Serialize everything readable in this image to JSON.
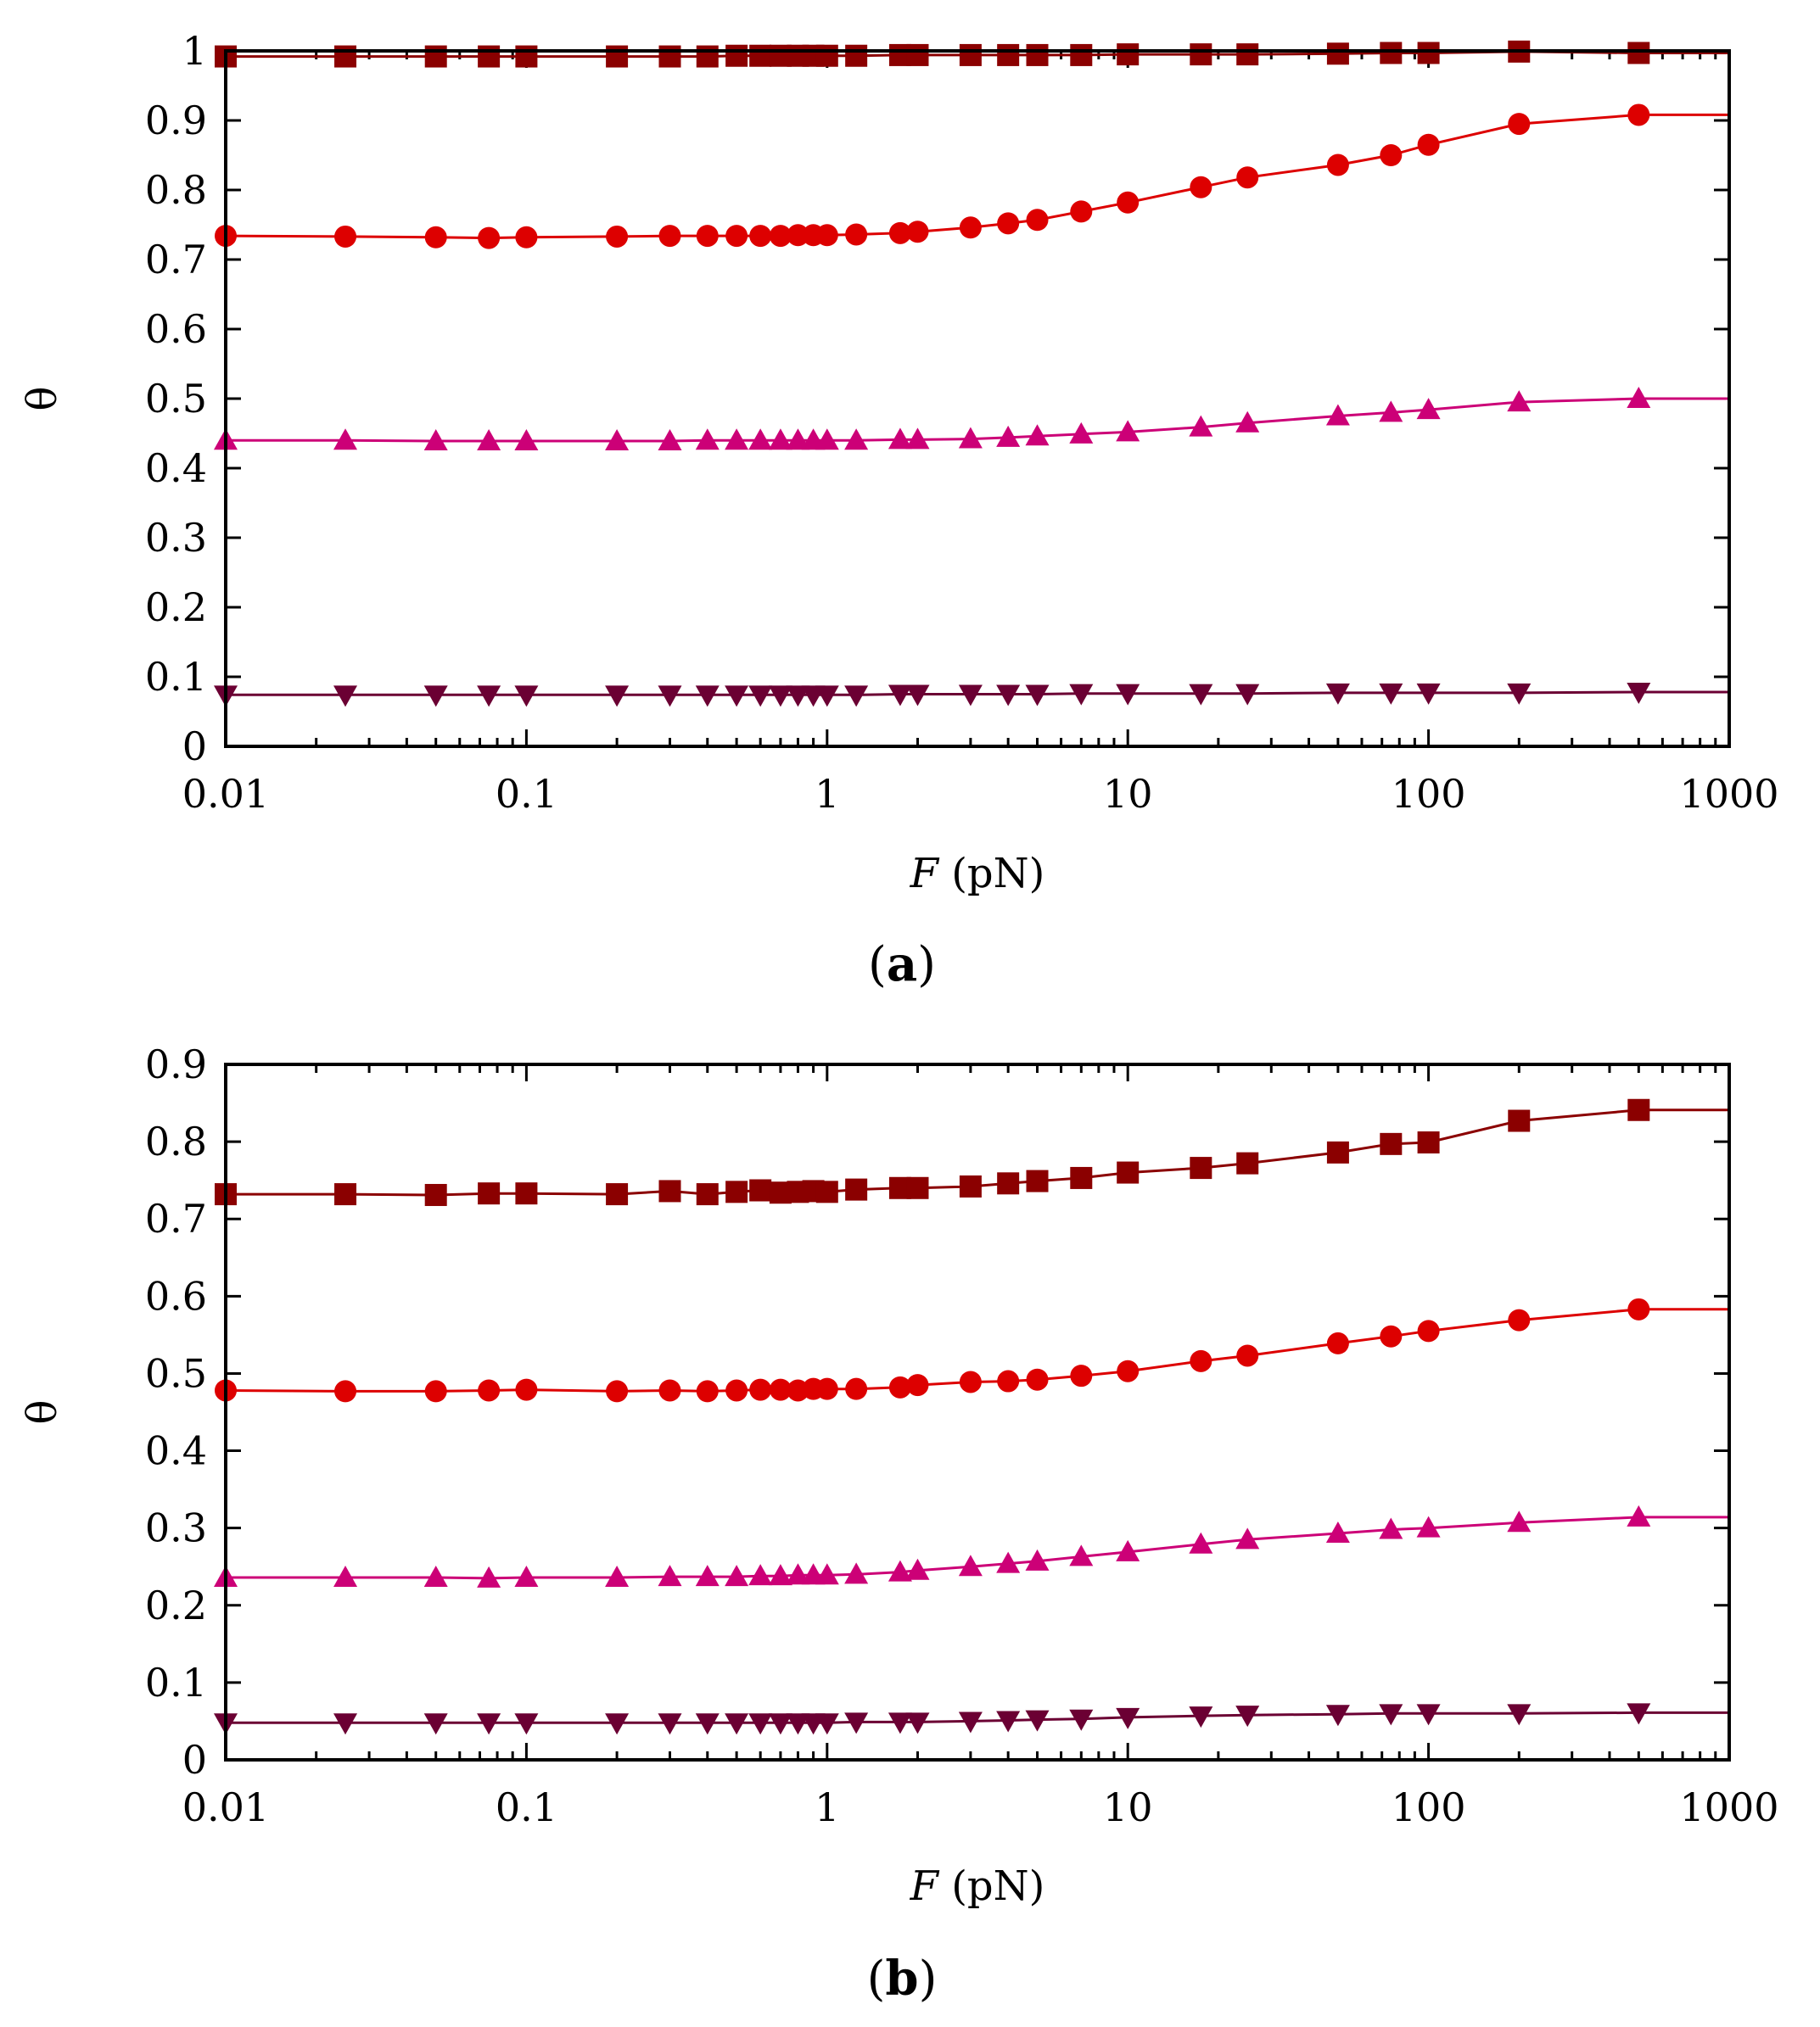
{
  "chart_data": [
    {
      "type": "line",
      "panel_label_open": "(",
      "panel_label_letter": "a",
      "panel_label_close": ")",
      "xlabel_var": "F",
      "xlabel_unit": " (pN)",
      "ylabel": "θ",
      "xscale": "log",
      "xlim": [
        0.01,
        1000
      ],
      "ylim": [
        0,
        1
      ],
      "xticks": [
        0.01,
        0.1,
        1,
        10,
        100,
        1000
      ],
      "xtick_labels": [
        "0.01",
        "0.1",
        "1",
        "10",
        "100",
        "1000"
      ],
      "yticks": [
        0,
        0.1,
        0.2,
        0.3,
        0.4,
        0.5,
        0.6,
        0.7,
        0.8,
        0.9,
        1
      ],
      "ytick_labels": [
        "0",
        "0.1",
        "0.2",
        "0.3",
        "0.4",
        "0.5",
        "0.6",
        "0.7",
        "0.8",
        "0.9",
        "1"
      ],
      "grid": false,
      "x": [
        0.01,
        0.025,
        0.05,
        0.075,
        0.1,
        0.2,
        0.3,
        0.4,
        0.5,
        0.6,
        0.7,
        0.8,
        0.9,
        1,
        1.25,
        1.75,
        2,
        3,
        4,
        5,
        7,
        10,
        17.5,
        25,
        50,
        75,
        100,
        200,
        500
      ],
      "series": [
        {
          "name": "squares",
          "marker": "square",
          "color": "#8b0000",
          "values": [
            0.992,
            0.992,
            0.992,
            0.992,
            0.992,
            0.992,
            0.992,
            0.992,
            0.993,
            0.993,
            0.993,
            0.993,
            0.993,
            0.993,
            0.993,
            0.994,
            0.994,
            0.994,
            0.994,
            0.994,
            0.994,
            0.995,
            0.995,
            0.995,
            0.996,
            0.997,
            0.997,
            0.999,
            0.997
          ]
        },
        {
          "name": "circles",
          "marker": "circle",
          "color": "#dd0000",
          "values": [
            0.734,
            0.733,
            0.732,
            0.731,
            0.732,
            0.733,
            0.734,
            0.734,
            0.734,
            0.734,
            0.734,
            0.735,
            0.735,
            0.735,
            0.736,
            0.738,
            0.74,
            0.746,
            0.752,
            0.757,
            0.769,
            0.782,
            0.804,
            0.818,
            0.836,
            0.85,
            0.865,
            0.895,
            0.908
          ]
        },
        {
          "name": "triangles-up",
          "marker": "triangle-up",
          "color": "#cc0077",
          "values": [
            0.44,
            0.44,
            0.439,
            0.439,
            0.439,
            0.439,
            0.439,
            0.44,
            0.44,
            0.44,
            0.44,
            0.44,
            0.44,
            0.44,
            0.44,
            0.441,
            0.441,
            0.442,
            0.444,
            0.446,
            0.449,
            0.452,
            0.459,
            0.465,
            0.475,
            0.48,
            0.484,
            0.495,
            0.5
          ]
        },
        {
          "name": "triangles-down",
          "marker": "triangle-down",
          "color": "#6b0033",
          "values": [
            0.074,
            0.074,
            0.074,
            0.074,
            0.074,
            0.074,
            0.074,
            0.074,
            0.074,
            0.074,
            0.074,
            0.074,
            0.074,
            0.074,
            0.074,
            0.075,
            0.075,
            0.075,
            0.075,
            0.075,
            0.076,
            0.076,
            0.076,
            0.076,
            0.077,
            0.077,
            0.077,
            0.077,
            0.078
          ]
        }
      ]
    },
    {
      "type": "line",
      "panel_label_open": "(",
      "panel_label_letter": "b",
      "panel_label_close": ")",
      "xlabel_var": "F",
      "xlabel_unit": " (pN)",
      "ylabel": "θ",
      "xscale": "log",
      "xlim": [
        0.01,
        1000
      ],
      "ylim": [
        0,
        0.9
      ],
      "xticks": [
        0.01,
        0.1,
        1,
        10,
        100,
        1000
      ],
      "xtick_labels": [
        "0.01",
        "0.1",
        "1",
        "10",
        "100",
        "1000"
      ],
      "yticks": [
        0,
        0.1,
        0.2,
        0.3,
        0.4,
        0.5,
        0.6,
        0.7,
        0.8,
        0.9
      ],
      "ytick_labels": [
        "0",
        "0.1",
        "0.2",
        "0.3",
        "0.4",
        "0.5",
        "0.6",
        "0.7",
        "0.8",
        "0.9"
      ],
      "grid": false,
      "x": [
        0.01,
        0.025,
        0.05,
        0.075,
        0.1,
        0.2,
        0.3,
        0.4,
        0.5,
        0.6,
        0.7,
        0.8,
        0.9,
        1,
        1.25,
        1.75,
        2,
        3,
        4,
        5,
        7,
        10,
        17.5,
        25,
        50,
        75,
        100,
        200,
        500
      ],
      "series": [
        {
          "name": "squares",
          "marker": "square",
          "color": "#8b0000",
          "values": [
            0.732,
            0.732,
            0.731,
            0.733,
            0.733,
            0.732,
            0.736,
            0.732,
            0.735,
            0.737,
            0.734,
            0.735,
            0.736,
            0.735,
            0.738,
            0.74,
            0.74,
            0.742,
            0.746,
            0.749,
            0.753,
            0.76,
            0.766,
            0.772,
            0.786,
            0.797,
            0.799,
            0.827,
            0.841
          ]
        },
        {
          "name": "circles",
          "marker": "circle",
          "color": "#dd0000",
          "values": [
            0.478,
            0.477,
            0.477,
            0.478,
            0.479,
            0.477,
            0.478,
            0.477,
            0.478,
            0.479,
            0.479,
            0.478,
            0.48,
            0.48,
            0.48,
            0.482,
            0.485,
            0.489,
            0.49,
            0.492,
            0.497,
            0.503,
            0.516,
            0.523,
            0.539,
            0.548,
            0.555,
            0.569,
            0.583
          ]
        },
        {
          "name": "triangles-up",
          "marker": "triangle-up",
          "color": "#cc0077",
          "values": [
            0.236,
            0.236,
            0.236,
            0.235,
            0.236,
            0.236,
            0.237,
            0.237,
            0.237,
            0.238,
            0.238,
            0.239,
            0.239,
            0.239,
            0.24,
            0.243,
            0.245,
            0.25,
            0.254,
            0.257,
            0.263,
            0.269,
            0.279,
            0.285,
            0.293,
            0.298,
            0.3,
            0.307,
            0.314
          ]
        },
        {
          "name": "triangles-down",
          "marker": "triangle-down",
          "color": "#6b0033",
          "values": [
            0.048,
            0.048,
            0.048,
            0.048,
            0.048,
            0.048,
            0.048,
            0.048,
            0.048,
            0.048,
            0.048,
            0.048,
            0.048,
            0.048,
            0.049,
            0.049,
            0.049,
            0.05,
            0.051,
            0.052,
            0.053,
            0.055,
            0.057,
            0.058,
            0.059,
            0.06,
            0.06,
            0.06,
            0.061
          ]
        }
      ]
    }
  ]
}
